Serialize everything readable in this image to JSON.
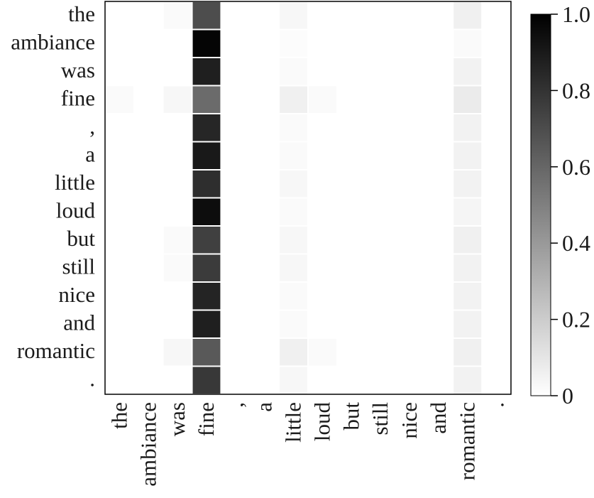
{
  "chart_data": {
    "type": "heatmap",
    "title": "",
    "xlabel": "",
    "ylabel": "",
    "row_labels": [
      "the",
      "ambiance",
      "was",
      "fine",
      ",",
      "a",
      "little",
      "loud",
      "but",
      "still",
      "nice",
      "and",
      "romantic",
      "."
    ],
    "col_labels": [
      "the",
      "ambiance",
      "was",
      "fine",
      ",",
      "a",
      "little",
      "loud",
      "but",
      "still",
      "nice",
      "and",
      "romantic",
      "."
    ],
    "values": [
      [
        0.0,
        0.0,
        0.02,
        0.7,
        0.0,
        0.0,
        0.03,
        0.0,
        0.0,
        0.0,
        0.0,
        0.0,
        0.06,
        0.0
      ],
      [
        0.0,
        0.0,
        0.0,
        0.98,
        0.0,
        0.0,
        0.01,
        0.0,
        0.0,
        0.0,
        0.0,
        0.0,
        0.02,
        0.0
      ],
      [
        0.0,
        0.0,
        0.0,
        0.88,
        0.0,
        0.0,
        0.02,
        0.0,
        0.0,
        0.0,
        0.0,
        0.0,
        0.05,
        0.0
      ],
      [
        0.02,
        0.0,
        0.03,
        0.58,
        0.0,
        0.0,
        0.06,
        0.02,
        0.0,
        0.0,
        0.0,
        0.0,
        0.08,
        0.0
      ],
      [
        0.0,
        0.0,
        0.0,
        0.85,
        0.0,
        0.0,
        0.02,
        0.0,
        0.0,
        0.0,
        0.0,
        0.0,
        0.05,
        0.0
      ],
      [
        0.0,
        0.0,
        0.0,
        0.9,
        0.0,
        0.0,
        0.02,
        0.0,
        0.0,
        0.0,
        0.0,
        0.0,
        0.05,
        0.0
      ],
      [
        0.0,
        0.0,
        0.0,
        0.82,
        0.0,
        0.0,
        0.03,
        0.0,
        0.0,
        0.0,
        0.0,
        0.0,
        0.05,
        0.0
      ],
      [
        0.0,
        0.0,
        0.0,
        0.95,
        0.0,
        0.0,
        0.02,
        0.0,
        0.0,
        0.0,
        0.0,
        0.0,
        0.04,
        0.0
      ],
      [
        0.0,
        0.0,
        0.02,
        0.75,
        0.0,
        0.0,
        0.03,
        0.0,
        0.0,
        0.0,
        0.0,
        0.0,
        0.06,
        0.0
      ],
      [
        0.0,
        0.0,
        0.02,
        0.77,
        0.0,
        0.0,
        0.03,
        0.0,
        0.0,
        0.0,
        0.0,
        0.0,
        0.05,
        0.0
      ],
      [
        0.0,
        0.0,
        0.0,
        0.86,
        0.0,
        0.0,
        0.02,
        0.0,
        0.0,
        0.0,
        0.0,
        0.0,
        0.05,
        0.0
      ],
      [
        0.0,
        0.0,
        0.0,
        0.88,
        0.0,
        0.0,
        0.02,
        0.0,
        0.0,
        0.0,
        0.0,
        0.0,
        0.05,
        0.0
      ],
      [
        0.0,
        0.0,
        0.03,
        0.65,
        0.0,
        0.0,
        0.06,
        0.02,
        0.0,
        0.0,
        0.0,
        0.0,
        0.06,
        0.0
      ],
      [
        0.0,
        0.0,
        0.0,
        0.78,
        0.0,
        0.0,
        0.03,
        0.0,
        0.0,
        0.0,
        0.0,
        0.0,
        0.05,
        0.0
      ]
    ],
    "colorbar": {
      "min": 0,
      "max": 1.0,
      "ticks": [
        "0",
        "0.2",
        "0.4",
        "0.6",
        "0.8",
        "1.0"
      ],
      "tick_values": [
        0,
        0.2,
        0.4,
        0.6,
        0.8,
        1.0
      ]
    },
    "colormap": {
      "low": "#ffffff",
      "high": "#000000"
    },
    "grid": false
  }
}
